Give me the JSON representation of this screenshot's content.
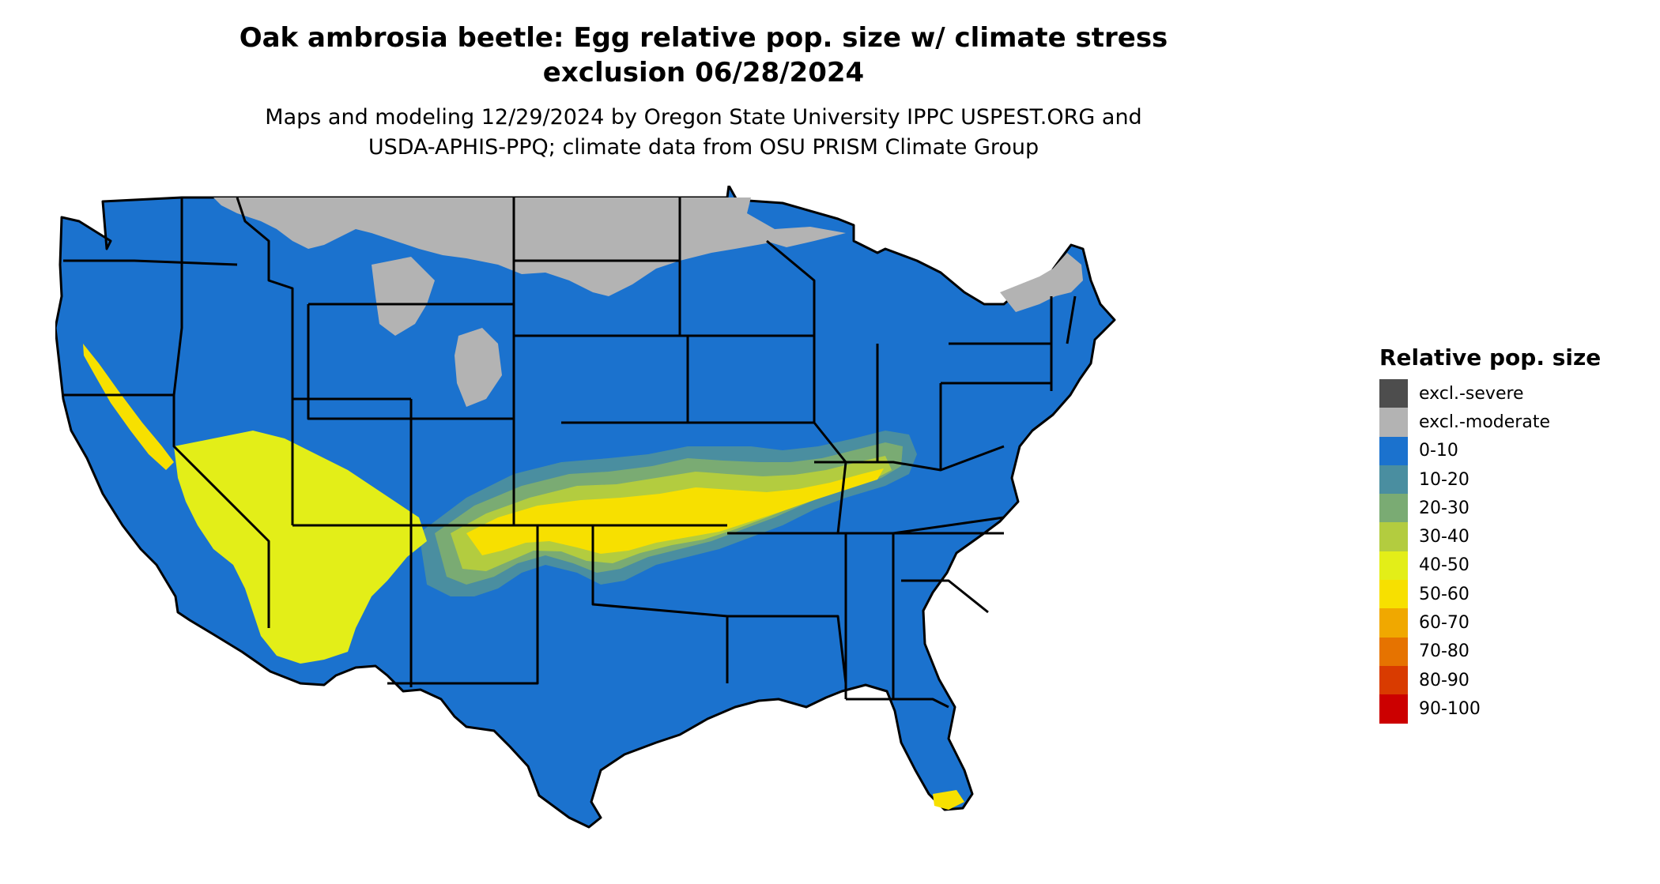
{
  "map": {
    "title_line1": "Oak ambrosia beetle: Egg relative pop. size w/ climate stress",
    "title_line2": "exclusion 06/28/2024",
    "subtitle_line1": "Maps and modeling 12/29/2024 by Oregon State University IPPC USPEST.ORG and",
    "subtitle_line2": "USDA-APHIS-PPQ; climate data from OSU PRISM Climate Group",
    "region": "Contiguous United States",
    "base_fill_category": "0-10",
    "colors": {
      "ocean": "#ffffff",
      "land_base": "#1b72ce",
      "state_border": "#000000"
    }
  },
  "legend": {
    "title": "Relative pop. size",
    "items": [
      {
        "label": "excl.-severe",
        "color": "#4d4d4d"
      },
      {
        "label": "excl.-moderate",
        "color": "#b3b3b3"
      },
      {
        "label": "0-10",
        "color": "#1b72ce"
      },
      {
        "label": "10-20",
        "color": "#4a8ea0"
      },
      {
        "label": "20-30",
        "color": "#7aab73"
      },
      {
        "label": "30-40",
        "color": "#b3cc3f"
      },
      {
        "label": "40-50",
        "color": "#e3ee18"
      },
      {
        "label": "50-60",
        "color": "#f7e000"
      },
      {
        "label": "60-70",
        "color": "#f0a800"
      },
      {
        "label": "70-80",
        "color": "#e67300"
      },
      {
        "label": "80-90",
        "color": "#d93b00"
      },
      {
        "label": "90-100",
        "color": "#cc0000"
      }
    ]
  }
}
